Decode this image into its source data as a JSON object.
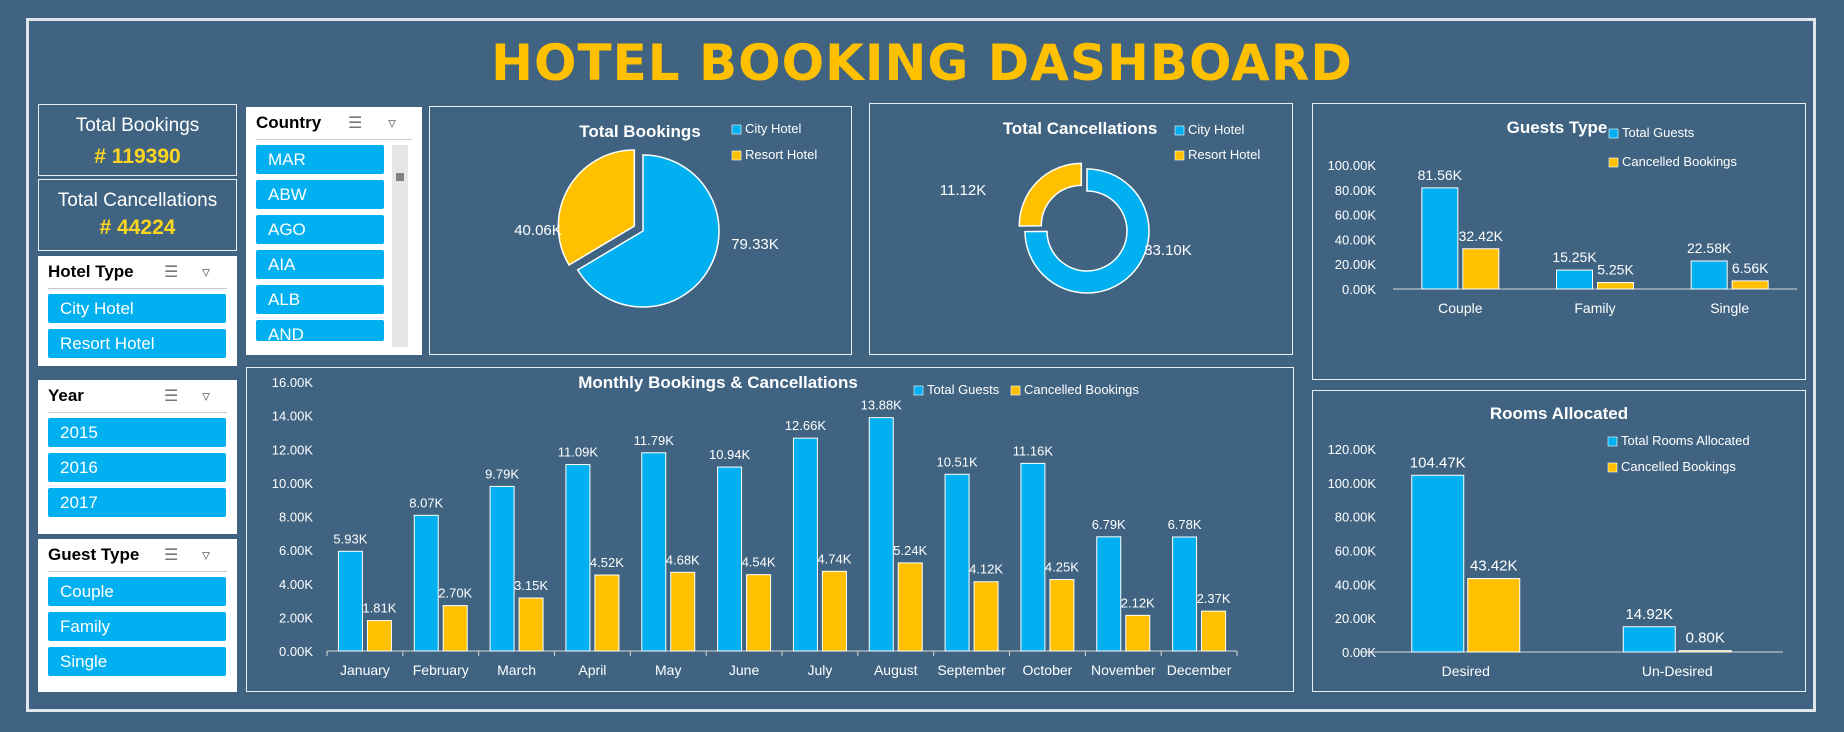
{
  "title": "HOTEL BOOKING DASHBOARD",
  "kpis": {
    "total_bookings": {
      "label": "Total Bookings",
      "value": "# 119390"
    },
    "total_cancellations": {
      "label": "Total Cancellations",
      "value": "# 44224"
    }
  },
  "slicers": {
    "hotel_type": {
      "title": "Hotel Type",
      "items": [
        "City Hotel",
        "Resort Hotel"
      ]
    },
    "year": {
      "title": "Year",
      "items": [
        "2015",
        "2016",
        "2017"
      ]
    },
    "guest_type": {
      "title": "Guest Type",
      "items": [
        "Couple",
        "Family",
        "Single"
      ]
    },
    "country": {
      "title": "Country",
      "items": [
        "MAR",
        "ABW",
        "AGO",
        "AIA",
        "ALB",
        "AND"
      ]
    }
  },
  "colors": {
    "blue": "#00b0f0",
    "gold": "#ffc000",
    "background": "#3f6380"
  },
  "chart_data": [
    {
      "type": "pie",
      "title": "Total Bookings",
      "categories": [
        "City Hotel",
        "Resort Hotel"
      ],
      "values": [
        79.33,
        40.06
      ],
      "labels": [
        "79.33K",
        "40.06K"
      ],
      "legend": "top-right"
    },
    {
      "type": "pie",
      "subtype": "donut",
      "title": "Total Cancellations",
      "categories": [
        "City Hotel",
        "Resort Hotel"
      ],
      "values": [
        33.1,
        11.12
      ],
      "labels": [
        "33.10K",
        "11.12K"
      ],
      "legend": "top-right"
    },
    {
      "type": "bar",
      "title": "Guests Type",
      "categories": [
        "Couple",
        "Family",
        "Single"
      ],
      "series": [
        {
          "name": "Total Guests",
          "values": [
            81.56,
            15.25,
            22.58
          ],
          "labels": [
            "81.56K",
            "15.25K",
            "22.58K"
          ]
        },
        {
          "name": "Cancelled Bookings",
          "values": [
            32.42,
            5.25,
            6.56
          ],
          "labels": [
            "32.42K",
            "5.25K",
            "6.56K"
          ]
        }
      ],
      "yticks": [
        "0.00K",
        "20.00K",
        "40.00K",
        "60.00K",
        "80.00K",
        "100.00K"
      ],
      "ylim": [
        0,
        100
      ],
      "legend": "top-right"
    },
    {
      "type": "bar",
      "title": "Monthly Bookings & Cancellations",
      "categories": [
        "January",
        "February",
        "March",
        "April",
        "May",
        "June",
        "July",
        "August",
        "September",
        "October",
        "November",
        "December"
      ],
      "series": [
        {
          "name": "Total Guests",
          "values": [
            5.93,
            8.07,
            9.79,
            11.09,
            11.79,
            10.94,
            12.66,
            13.88,
            10.51,
            11.16,
            6.79,
            6.78
          ],
          "labels": [
            "5.93K",
            "8.07K",
            "9.79K",
            "11.09K",
            "11.79K",
            "10.94K",
            "12.66K",
            "13.88K",
            "10.51K",
            "11.16K",
            "6.79K",
            "6.78K"
          ]
        },
        {
          "name": "Cancelled Bookings",
          "values": [
            1.81,
            2.7,
            3.15,
            4.52,
            4.68,
            4.54,
            4.74,
            5.24,
            4.12,
            4.25,
            2.12,
            2.37
          ],
          "labels": [
            "1.81K",
            "2.70K",
            "3.15K",
            "4.52K",
            "4.68K",
            "4.54K",
            "4.74K",
            "5.24K",
            "4.12K",
            "4.25K",
            "2.12K",
            "2.37K"
          ]
        }
      ],
      "yticks": [
        "0.00K",
        "2.00K",
        "4.00K",
        "6.00K",
        "8.00K",
        "10.00K",
        "12.00K",
        "14.00K",
        "16.00K"
      ],
      "ylim": [
        0,
        16
      ],
      "legend": "top-right"
    },
    {
      "type": "bar",
      "title": "Rooms Allocated",
      "categories": [
        "Desired",
        "Un-Desired"
      ],
      "series": [
        {
          "name": "Total Rooms Allocated",
          "values": [
            104.47,
            14.92
          ],
          "labels": [
            "104.47K",
            "14.92K"
          ]
        },
        {
          "name": "Cancelled Bookings",
          "values": [
            43.42,
            0.8
          ],
          "labels": [
            "43.42K",
            "0.80K"
          ]
        }
      ],
      "yticks": [
        "0.00K",
        "20.00K",
        "40.00K",
        "60.00K",
        "80.00K",
        "100.00K",
        "120.00K"
      ],
      "ylim": [
        0,
        120
      ],
      "legend": "top-right"
    }
  ]
}
